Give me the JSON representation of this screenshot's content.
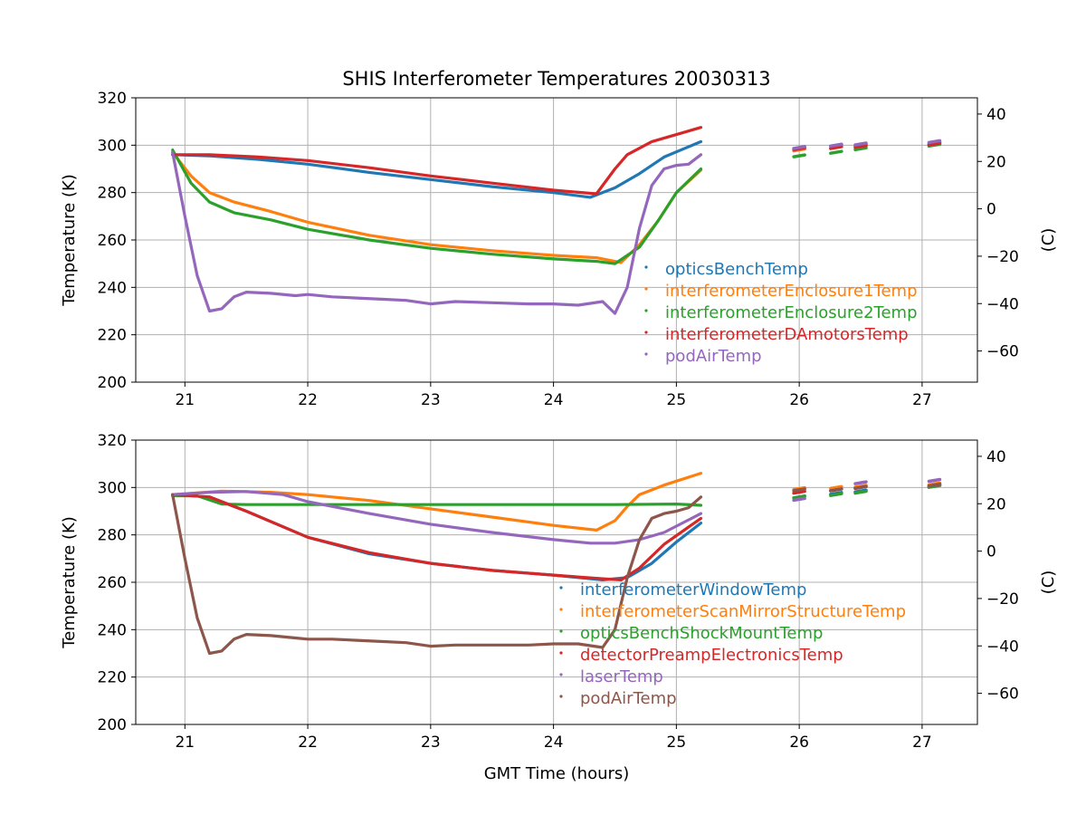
{
  "figure": {
    "title": "SHIS Interferometer Temperatures 20030313",
    "xlabel": "GMT Time (hours)"
  },
  "chart_data": [
    {
      "type": "scatter",
      "title": "SHIS Interferometer Temperatures 20030313",
      "xlabel": "",
      "ylabel": "Temperature (K)",
      "y2label": "(C)",
      "xlim": [
        20.6,
        27.45
      ],
      "ylim": [
        200,
        320
      ],
      "y2lim": [
        -73.15,
        46.85
      ],
      "xticks": [
        21,
        22,
        23,
        24,
        25,
        26,
        27
      ],
      "yticks": [
        200,
        220,
        240,
        260,
        280,
        300,
        320
      ],
      "y2ticks": [
        -60,
        -40,
        -20,
        0,
        20,
        40
      ],
      "grid": true,
      "legend_position": "lower-right",
      "series": [
        {
          "name": "opticsBenchTemp",
          "color": "#1f77b4",
          "points": [
            [
              20.9,
              296
            ],
            [
              21.2,
              295.5
            ],
            [
              21.6,
              294
            ],
            [
              22.0,
              292
            ],
            [
              22.5,
              288.5
            ],
            [
              23.0,
              285.5
            ],
            [
              23.5,
              282.5
            ],
            [
              24.0,
              280
            ],
            [
              24.3,
              278
            ],
            [
              24.5,
              282
            ],
            [
              24.7,
              288
            ],
            [
              24.9,
              295
            ],
            [
              25.2,
              301.5
            ]
          ],
          "late_points": [
            [
              26.0,
              299
            ],
            [
              26.3,
              300
            ],
            [
              26.5,
              300
            ],
            [
              27.1,
              301
            ]
          ]
        },
        {
          "name": "interferometerEnclosure1Temp",
          "color": "#ff7f0e",
          "points": [
            [
              20.9,
              297
            ],
            [
              21.05,
              287
            ],
            [
              21.2,
              280
            ],
            [
              21.4,
              276
            ],
            [
              21.7,
              272
            ],
            [
              22.0,
              267.5
            ],
            [
              22.5,
              262
            ],
            [
              23.0,
              258
            ],
            [
              23.5,
              255.5
            ],
            [
              24.0,
              253.5
            ],
            [
              24.35,
              252.5
            ],
            [
              24.55,
              250.5
            ],
            [
              24.7,
              258
            ],
            [
              24.85,
              268
            ],
            [
              25.0,
              280
            ],
            [
              25.2,
              289.5
            ]
          ],
          "late_points": [
            [
              26.0,
              298
            ],
            [
              26.3,
              299
            ],
            [
              26.5,
              299.5
            ],
            [
              27.1,
              300.5
            ]
          ]
        },
        {
          "name": "interferometerEnclosure2Temp",
          "color": "#2ca02c",
          "points": [
            [
              20.9,
              298
            ],
            [
              21.05,
              284
            ],
            [
              21.2,
              276
            ],
            [
              21.4,
              271.5
            ],
            [
              21.7,
              268.5
            ],
            [
              22.0,
              264.5
            ],
            [
              22.5,
              260
            ],
            [
              23.0,
              256.5
            ],
            [
              23.5,
              254
            ],
            [
              24.0,
              252
            ],
            [
              24.35,
              251
            ],
            [
              24.5,
              250
            ],
            [
              24.7,
              257
            ],
            [
              24.85,
              268
            ],
            [
              25.0,
              280
            ],
            [
              25.2,
              290
            ]
          ],
          "late_points": [
            [
              26.0,
              295.5
            ],
            [
              26.3,
              297
            ],
            [
              26.5,
              298.5
            ],
            [
              27.1,
              300
            ]
          ]
        },
        {
          "name": "interferometerDAmotorsTemp",
          "color": "#d62728",
          "points": [
            [
              20.9,
              296
            ],
            [
              21.2,
              296
            ],
            [
              21.6,
              295
            ],
            [
              22.0,
              293.5
            ],
            [
              22.5,
              290.5
            ],
            [
              23.0,
              287
            ],
            [
              23.5,
              284
            ],
            [
              24.0,
              281
            ],
            [
              24.35,
              279.5
            ],
            [
              24.5,
              290
            ],
            [
              24.6,
              296
            ],
            [
              24.8,
              301.5
            ],
            [
              25.0,
              304.5
            ],
            [
              25.2,
              307.5
            ]
          ],
          "late_points": [
            [
              26.0,
              298.5
            ],
            [
              26.3,
              299
            ],
            [
              26.5,
              299.5
            ],
            [
              27.1,
              300.5
            ]
          ]
        },
        {
          "name": "podAirTemp",
          "color": "#9467bd",
          "points": [
            [
              20.9,
              297
            ],
            [
              21.0,
              270
            ],
            [
              21.1,
              245
            ],
            [
              21.2,
              230
            ],
            [
              21.3,
              231
            ],
            [
              21.4,
              236
            ],
            [
              21.5,
              238
            ],
            [
              21.7,
              237.5
            ],
            [
              21.9,
              236.5
            ],
            [
              22.0,
              237
            ],
            [
              22.2,
              236
            ],
            [
              22.4,
              235.5
            ],
            [
              22.6,
              235
            ],
            [
              22.8,
              234.5
            ],
            [
              23.0,
              233
            ],
            [
              23.2,
              234
            ],
            [
              23.5,
              233.5
            ],
            [
              23.8,
              233
            ],
            [
              24.0,
              233
            ],
            [
              24.2,
              232.5
            ],
            [
              24.4,
              234
            ],
            [
              24.5,
              229
            ],
            [
              24.6,
              240
            ],
            [
              24.7,
              265
            ],
            [
              24.8,
              283
            ],
            [
              24.9,
              290
            ],
            [
              25.0,
              291.5
            ],
            [
              25.1,
              292
            ],
            [
              25.2,
              296
            ]
          ],
          "late_points": [
            [
              26.0,
              299
            ],
            [
              26.3,
              300
            ],
            [
              26.5,
              300.5
            ],
            [
              27.1,
              301.5
            ]
          ]
        }
      ]
    },
    {
      "type": "scatter",
      "title": "",
      "xlabel": "GMT Time (hours)",
      "ylabel": "Temperature (K)",
      "y2label": "(C)",
      "xlim": [
        20.6,
        27.45
      ],
      "ylim": [
        200,
        320
      ],
      "y2lim": [
        -73.15,
        46.85
      ],
      "xticks": [
        21,
        22,
        23,
        24,
        25,
        26,
        27
      ],
      "yticks": [
        200,
        220,
        240,
        260,
        280,
        300,
        320
      ],
      "y2ticks": [
        -60,
        -40,
        -20,
        0,
        20,
        40
      ],
      "grid": true,
      "legend_position": "lower-right",
      "series": [
        {
          "name": "interferometerWindowTemp",
          "color": "#1f77b4",
          "points": [
            [
              20.9,
              297
            ],
            [
              21.2,
              296
            ],
            [
              21.5,
              290
            ],
            [
              22.0,
              279
            ],
            [
              22.5,
              272
            ],
            [
              23.0,
              268
            ],
            [
              23.5,
              265
            ],
            [
              24.0,
              263
            ],
            [
              24.4,
              261
            ],
            [
              24.6,
              262
            ],
            [
              24.8,
              268
            ],
            [
              25.0,
              277
            ],
            [
              25.2,
              285
            ]
          ],
          "late_points": [
            [
              26.0,
              296
            ],
            [
              26.3,
              297.5
            ],
            [
              26.5,
              298.5
            ],
            [
              27.1,
              300.5
            ]
          ]
        },
        {
          "name": "interferometerScanMirrorStructureTemp",
          "color": "#ff7f0e",
          "points": [
            [
              20.9,
              297
            ],
            [
              21.3,
              298.5
            ],
            [
              21.7,
              298
            ],
            [
              22.0,
              297
            ],
            [
              22.5,
              294.5
            ],
            [
              23.0,
              291
            ],
            [
              23.5,
              287.5
            ],
            [
              24.0,
              284
            ],
            [
              24.35,
              282
            ],
            [
              24.5,
              286
            ],
            [
              24.6,
              292
            ],
            [
              24.7,
              297
            ],
            [
              24.9,
              301
            ],
            [
              25.2,
              306
            ]
          ],
          "late_points": [
            [
              26.0,
              299.5
            ],
            [
              26.3,
              300
            ],
            [
              26.5,
              300.5
            ],
            [
              27.1,
              301.5
            ]
          ]
        },
        {
          "name": "opticsBenchShockMountTemp",
          "color": "#2ca02c",
          "points": [
            [
              20.9,
              296.5
            ],
            [
              21.1,
              296.5
            ],
            [
              21.3,
              293
            ],
            [
              21.5,
              292.8
            ],
            [
              22.0,
              292.8
            ],
            [
              22.5,
              292.8
            ],
            [
              23.0,
              292.8
            ],
            [
              23.5,
              292.8
            ],
            [
              24.0,
              292.8
            ],
            [
              24.5,
              292.8
            ],
            [
              25.0,
              293
            ],
            [
              25.2,
              292.5
            ]
          ],
          "late_points": [
            [
              26.0,
              296
            ],
            [
              26.3,
              297
            ],
            [
              26.5,
              298
            ],
            [
              27.1,
              300.5
            ]
          ]
        },
        {
          "name": "detectorPreampElectronicsTemp",
          "color": "#d62728",
          "points": [
            [
              20.9,
              297
            ],
            [
              21.2,
              296
            ],
            [
              21.5,
              290
            ],
            [
              22.0,
              279
            ],
            [
              22.5,
              272.5
            ],
            [
              23.0,
              268
            ],
            [
              23.5,
              265
            ],
            [
              24.0,
              263
            ],
            [
              24.4,
              261.5
            ],
            [
              24.55,
              261
            ],
            [
              24.7,
              266
            ],
            [
              24.9,
              276
            ],
            [
              25.2,
              287
            ]
          ],
          "late_points": [
            [
              26.0,
              298
            ],
            [
              26.3,
              299
            ],
            [
              26.5,
              300
            ],
            [
              27.1,
              301
            ]
          ]
        },
        {
          "name": "laserTemp",
          "color": "#9467bd",
          "points": [
            [
              20.9,
              297
            ],
            [
              21.2,
              298
            ],
            [
              21.5,
              298.3
            ],
            [
              21.8,
              297
            ],
            [
              22.0,
              294
            ],
            [
              22.5,
              289
            ],
            [
              23.0,
              284.5
            ],
            [
              23.5,
              281
            ],
            [
              24.0,
              278
            ],
            [
              24.3,
              276.5
            ],
            [
              24.5,
              276.5
            ],
            [
              24.7,
              278
            ],
            [
              24.9,
              281
            ],
            [
              25.2,
              289
            ]
          ],
          "late_points": [
            [
              26.0,
              295
            ],
            [
              26.3,
              299
            ],
            [
              26.5,
              302
            ],
            [
              27.1,
              303
            ]
          ]
        },
        {
          "name": "podAirTemp",
          "color": "#8c564b",
          "points": [
            [
              20.9,
              297
            ],
            [
              21.0,
              270
            ],
            [
              21.1,
              245
            ],
            [
              21.2,
              230
            ],
            [
              21.3,
              231
            ],
            [
              21.4,
              236
            ],
            [
              21.5,
              238
            ],
            [
              21.7,
              237.5
            ],
            [
              21.9,
              236.5
            ],
            [
              22.0,
              236
            ],
            [
              22.2,
              236
            ],
            [
              22.4,
              235.5
            ],
            [
              22.6,
              235
            ],
            [
              22.8,
              234.5
            ],
            [
              23.0,
              233
            ],
            [
              23.2,
              233.5
            ],
            [
              23.5,
              233.5
            ],
            [
              23.8,
              233.5
            ],
            [
              24.0,
              234
            ],
            [
              24.2,
              234
            ],
            [
              24.4,
              232.5
            ],
            [
              24.5,
              240
            ],
            [
              24.6,
              262
            ],
            [
              24.7,
              278
            ],
            [
              24.8,
              287
            ],
            [
              24.9,
              289
            ],
            [
              25.0,
              290
            ],
            [
              25.1,
              291.5
            ],
            [
              25.2,
              296
            ]
          ],
          "late_points": [
            [
              26.0,
              299
            ],
            [
              26.3,
              299
            ],
            [
              26.5,
              300
            ],
            [
              27.1,
              301
            ]
          ]
        }
      ]
    }
  ]
}
